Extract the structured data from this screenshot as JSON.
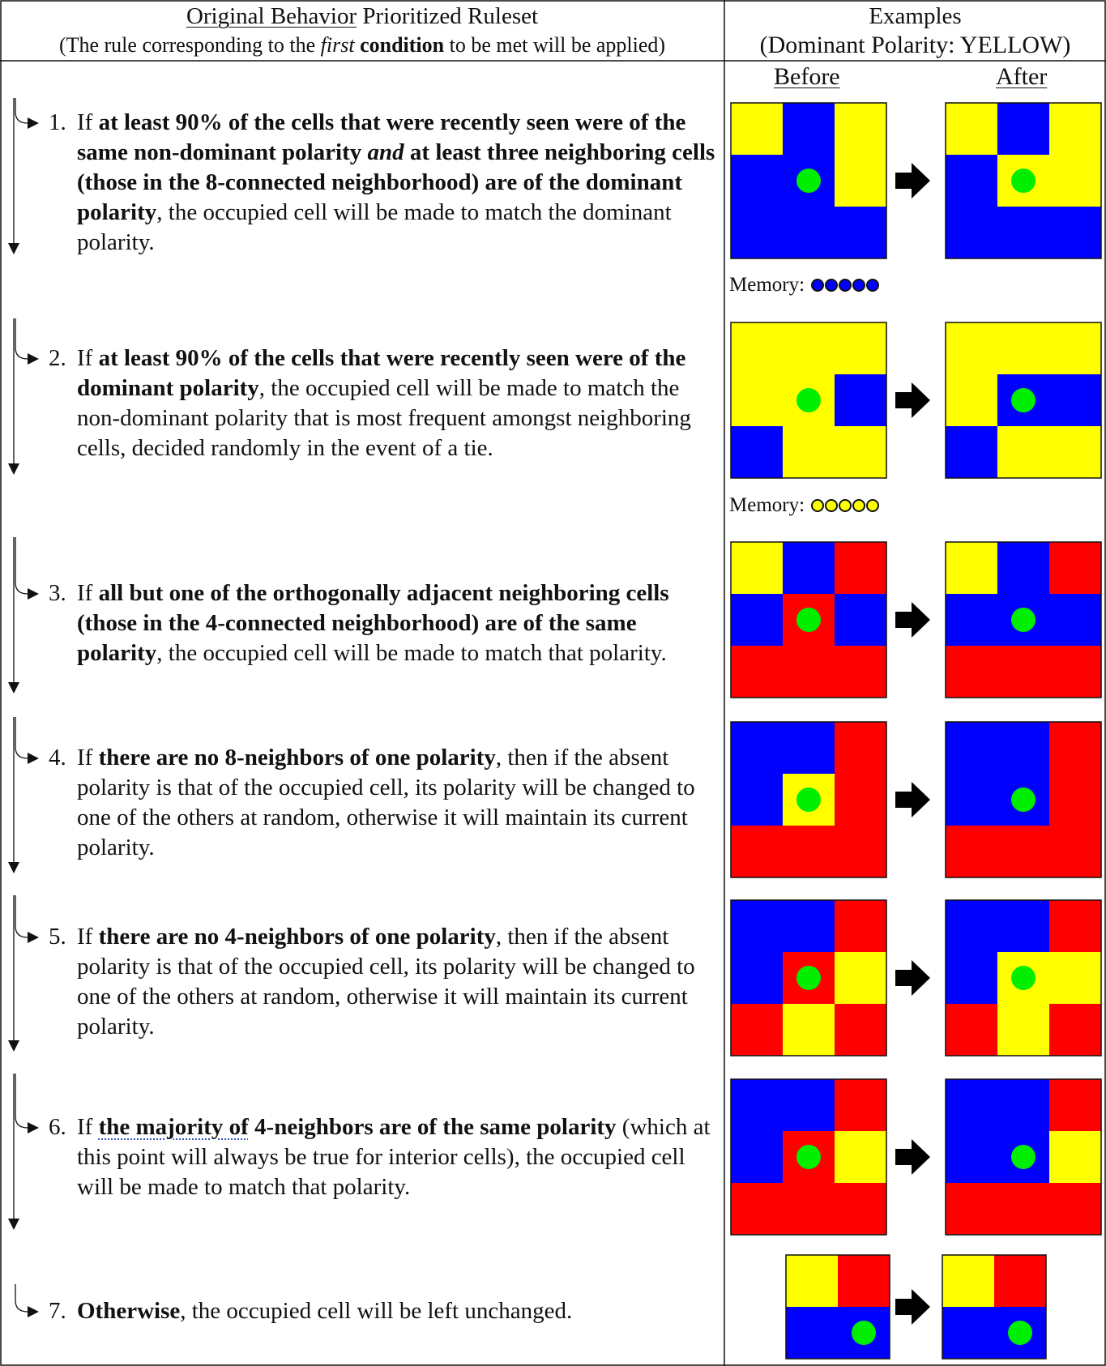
{
  "header": {
    "left_title_underlined": "Original Behavior",
    "left_title_rest": " Prioritized Ruleset",
    "left_subtitle_pre": "(The rule corresponding to the ",
    "left_subtitle_italic": "first",
    "left_subtitle_bold": " condition",
    "left_subtitle_post": " to be met will be applied)",
    "right_title": "Examples",
    "right_subtitle": "(Dominant Polarity: YELLOW)",
    "before_label": "Before",
    "after_label": "After"
  },
  "colors": {
    "yellow": "#ffff00",
    "blue": "#0000ff",
    "red": "#ff0000",
    "green": "#00ee00",
    "border": "#111111"
  },
  "rules": [
    {
      "num": "1.",
      "parts": [
        {
          "t": "If "
        },
        {
          "t": "at least 90% of the cells that were recently seen were of the same non-dominant polarity ",
          "b": true
        },
        {
          "t": "and",
          "i": true,
          "b": true
        },
        {
          "t": " at least three neighboring cells (those in the 8-connected neighborhood) are of the dominant polarity",
          "b": true
        },
        {
          "t": ", the occupied cell will be made to match the dominant polarity."
        }
      ]
    },
    {
      "num": "2.",
      "parts": [
        {
          "t": "If "
        },
        {
          "t": "at least 90% of the cells that were recently seen were of the dominant polarity",
          "b": true
        },
        {
          "t": ", the occupied cell will be made to match the non-dominant polarity that is most frequent amongst neighboring cells, decided randomly in the event of a tie."
        }
      ]
    },
    {
      "num": "3.",
      "parts": [
        {
          "t": "If "
        },
        {
          "t": "all but one of the orthogonally adjacent neighboring cells (those in the 4-connected neighborhood) are of the same polarity",
          "b": true
        },
        {
          "t": ", the occupied cell will be made to match that polarity."
        }
      ]
    },
    {
      "num": "4.",
      "parts": [
        {
          "t": "If "
        },
        {
          "t": "there are no 8-neighbors of one polarity",
          "b": true
        },
        {
          "t": ", then if the absent polarity is that of the occupied cell, its polarity will be changed to one of the others at random, otherwise it will maintain its current polarity."
        }
      ]
    },
    {
      "num": "5.",
      "parts": [
        {
          "t": "If "
        },
        {
          "t": "there are no 4-neighbors of one polarity",
          "b": true
        },
        {
          "t": ", then if the absent polarity is that of the occupied cell, its polarity will be changed to one of the others at random, otherwise it will maintain its current polarity."
        }
      ]
    },
    {
      "num": "6.",
      "parts": [
        {
          "t": "If "
        },
        {
          "t": "the majority of",
          "b": true,
          "dotted": true
        },
        {
          "t": " 4-neighbors are of the same polarity",
          "b": true
        },
        {
          "t": " (which at this point will always be true for interior cells), the occupied cell will be made to match that polarity."
        }
      ]
    },
    {
      "num": "7.",
      "parts": [
        {
          "t": "Otherwise",
          "b": true
        },
        {
          "t": ", the occupied cell will be left unchanged."
        }
      ]
    }
  ],
  "examples": [
    {
      "before": [
        [
          "Y",
          "B",
          "Y"
        ],
        [
          "B",
          "B",
          "Y"
        ],
        [
          "B",
          "B",
          "B"
        ]
      ],
      "after": [
        [
          "Y",
          "B",
          "Y"
        ],
        [
          "B",
          "Y",
          "Y"
        ],
        [
          "B",
          "B",
          "B"
        ]
      ],
      "memory_label": "Memory:",
      "memory": [
        "B",
        "B",
        "B",
        "B",
        "B"
      ]
    },
    {
      "before": [
        [
          "Y",
          "Y",
          "Y"
        ],
        [
          "Y",
          "Y",
          "B"
        ],
        [
          "B",
          "Y",
          "Y"
        ]
      ],
      "after": [
        [
          "Y",
          "Y",
          "Y"
        ],
        [
          "Y",
          "B",
          "B"
        ],
        [
          "B",
          "Y",
          "Y"
        ]
      ],
      "memory_label": "Memory:",
      "memory": [
        "Y",
        "Y",
        "Y",
        "Y",
        "Y"
      ]
    },
    {
      "before": [
        [
          "Y",
          "B",
          "R"
        ],
        [
          "B",
          "R",
          "B"
        ],
        [
          "R",
          "R",
          "R"
        ]
      ],
      "after": [
        [
          "Y",
          "B",
          "R"
        ],
        [
          "B",
          "B",
          "B"
        ],
        [
          "R",
          "R",
          "R"
        ]
      ]
    },
    {
      "before": [
        [
          "B",
          "B",
          "R"
        ],
        [
          "B",
          "Y",
          "R"
        ],
        [
          "R",
          "R",
          "R"
        ]
      ],
      "after": [
        [
          "B",
          "B",
          "R"
        ],
        [
          "B",
          "B",
          "R"
        ],
        [
          "R",
          "R",
          "R"
        ]
      ]
    },
    {
      "before": [
        [
          "B",
          "B",
          "R"
        ],
        [
          "B",
          "R",
          "Y"
        ],
        [
          "R",
          "Y",
          "R"
        ]
      ],
      "after": [
        [
          "B",
          "B",
          "R"
        ],
        [
          "B",
          "Y",
          "Y"
        ],
        [
          "R",
          "Y",
          "R"
        ]
      ]
    },
    {
      "before": [
        [
          "B",
          "B",
          "R"
        ],
        [
          "B",
          "R",
          "Y"
        ],
        [
          "R",
          "R",
          "R"
        ]
      ],
      "after": [
        [
          "B",
          "B",
          "R"
        ],
        [
          "B",
          "B",
          "Y"
        ],
        [
          "R",
          "R",
          "R"
        ]
      ]
    },
    {
      "before": [
        [
          "Y",
          "R"
        ],
        [
          "B",
          "B"
        ]
      ],
      "after": [
        [
          "Y",
          "R"
        ],
        [
          "B",
          "B"
        ]
      ]
    }
  ]
}
